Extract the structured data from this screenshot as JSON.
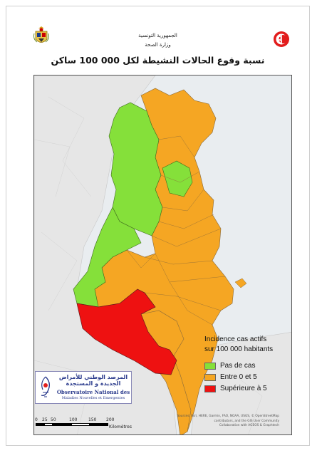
{
  "header": {
    "republic": "الجمهورية التونسية",
    "ministry": "وزارة الصحة",
    "title": "نسبة وقوع الحالات النشيطة لكل 000 100 ساكن"
  },
  "legend": {
    "title_line1": "Incidence cas actifs",
    "title_line2": "sur 100 000 habitants",
    "items": [
      {
        "label": "Pas de cas",
        "color": "#85e03a"
      },
      {
        "label": "Entre 0 et 5",
        "color": "#f5a623"
      },
      {
        "label": "Supérieure à 5",
        "color": "#ee1111"
      }
    ]
  },
  "colors": {
    "no_cases": "#85e03a",
    "zero_to_five": "#f5a623",
    "above_five": "#ee1111",
    "land_other": "#e6e6e6",
    "sea": "#e9edf0"
  },
  "observatory": {
    "arabic": "المرصد الوطني للأمراض الجديدة و المستجدة",
    "name": "Observatoire National des",
    "subname": "Maladies Nouvelles et Emergentes"
  },
  "scale": {
    "ticks": [
      "0",
      "25",
      "50",
      "100",
      "150",
      "200"
    ],
    "unit": "Kilomètres"
  },
  "sources": {
    "line1": "Sources: Esri, HERE, Garmin, FAO, NOAA, USGS, © OpenStreetMap",
    "line2": "contributors, and the GIS User Community",
    "line3": "Collaboration with AGEOS & Graphtech"
  }
}
